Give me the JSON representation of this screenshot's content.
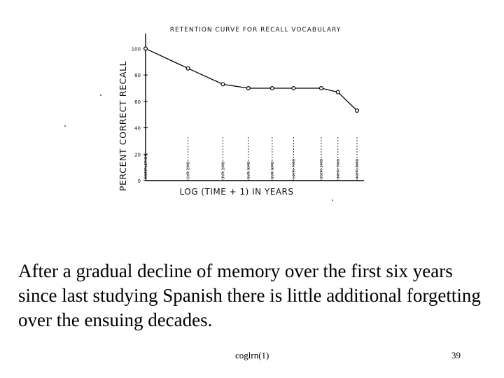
{
  "chart_data": {
    "type": "line",
    "title": "RETENTION CURVE FOR RECALL VOCABULARY",
    "ylabel": "PERCENT CORRECT RECALL",
    "xlabel": "LOG (TIME + 1) IN YEARS",
    "ylim": [
      0,
      105
    ],
    "yticks": [
      0,
      20,
      40,
      60,
      80,
      100
    ],
    "ytick_labels": [
      "0",
      "20",
      "40",
      "60",
      "80",
      "100"
    ],
    "x_scale": "log(time + 1)",
    "grid": false,
    "legend": "none",
    "x_categories": [
      "COMPLETION",
      "1YR 2MO",
      "3YR 2MO",
      "5YR 9MO",
      "9YR 6MO",
      "14YR 7MO",
      "25YR 1MO",
      "34YR 7MO",
      "49YR 8MO"
    ],
    "x": [
      0,
      1.2,
      3.2,
      5.75,
      9.5,
      14.6,
      25.1,
      34.6,
      49.7
    ],
    "series": [
      {
        "values": [
          100,
          85,
          73,
          70,
          70,
          70,
          70,
          67,
          53
        ]
      }
    ],
    "color": "#000000"
  },
  "caption": "After a gradual decline of memory over the first six years since last studying Spanish there is little additional forgetting over the ensuing decades.",
  "footer": {
    "label": "coglrn(1)",
    "page": "39"
  }
}
